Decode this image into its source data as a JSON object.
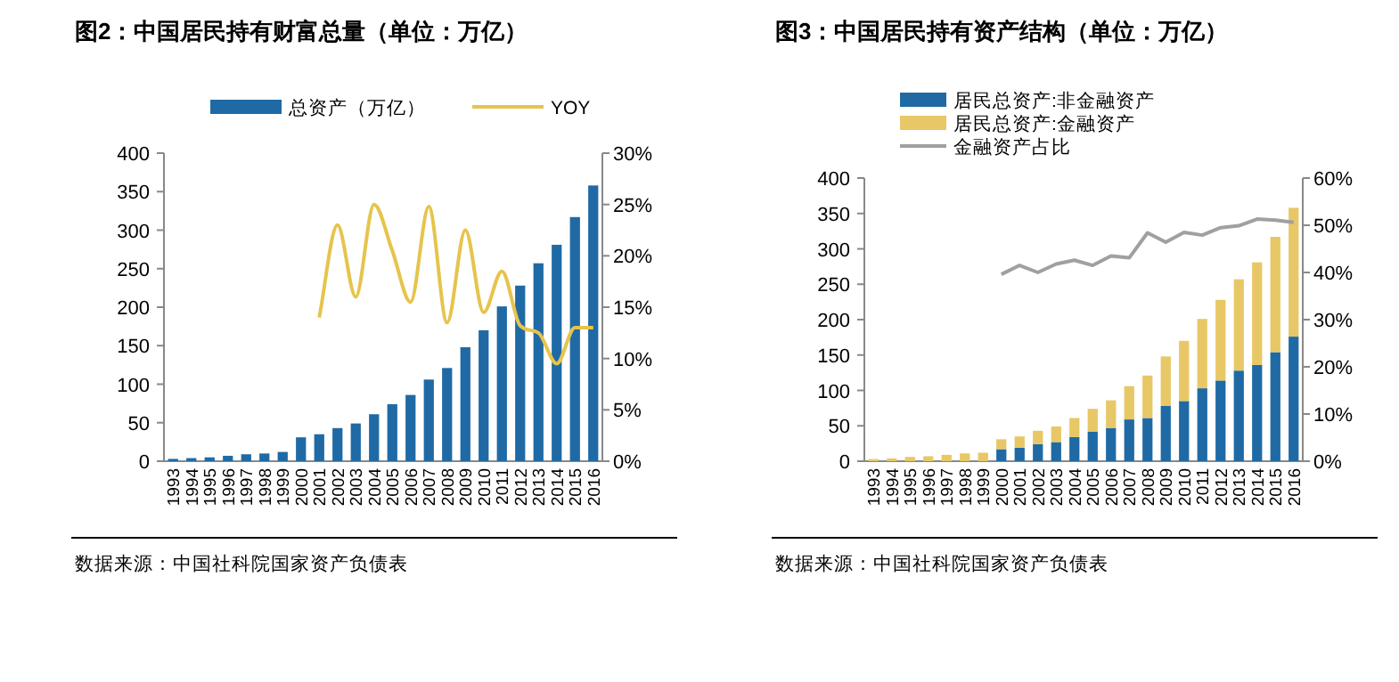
{
  "chart_data": [
    {
      "type": "bar",
      "title": "图2：中国居民持有财富总量（单位：万亿）",
      "categories": [
        "1993",
        "1994",
        "1995",
        "1996",
        "1997",
        "1998",
        "1999",
        "2000",
        "2001",
        "2002",
        "2003",
        "2004",
        "2005",
        "2006",
        "2007",
        "2008",
        "2009",
        "2010",
        "2011",
        "2012",
        "2013",
        "2014",
        "2015",
        "2016"
      ],
      "series": [
        {
          "name": "总资产（万亿）",
          "color": "#1f6aa5",
          "values": [
            3,
            4,
            5,
            7,
            9,
            10,
            12,
            31,
            35,
            43,
            49,
            61,
            74,
            86,
            106,
            121,
            148,
            170,
            201,
            228,
            257,
            281,
            317,
            358
          ]
        },
        {
          "name": "YOY",
          "type": "line",
          "axis": "y2",
          "color": "#e6c44c",
          "values": [
            null,
            null,
            null,
            null,
            null,
            null,
            null,
            null,
            14,
            23,
            16,
            25,
            20.5,
            15.5,
            24.8,
            13.5,
            22.5,
            14.5,
            18.5,
            13.2,
            12.5,
            9.5,
            13,
            13
          ]
        }
      ],
      "ylim": [
        0,
        400
      ],
      "yticks": [
        0,
        50,
        100,
        150,
        200,
        250,
        300,
        350,
        400
      ],
      "y2lim": [
        0,
        30
      ],
      "y2ticks": [
        {
          "value": 0,
          "label": "0%"
        },
        {
          "value": 5,
          "label": "5%"
        },
        {
          "value": 10,
          "label": "10%"
        },
        {
          "value": 15,
          "label": "15%"
        },
        {
          "value": 20,
          "label": "20%"
        },
        {
          "value": 25,
          "label": "25%"
        },
        {
          "value": 30,
          "label": "30%"
        }
      ],
      "legend": "top",
      "annotations": [
        "数据来源：中国社科院国家资产负债表"
      ]
    },
    {
      "type": "bar",
      "title": "图3：中国居民持有资产结构（单位：万亿）",
      "stacked": true,
      "categories": [
        "1993",
        "1994",
        "1995",
        "1996",
        "1997",
        "1998",
        "1999",
        "2000",
        "2001",
        "2002",
        "2003",
        "2004",
        "2005",
        "2006",
        "2007",
        "2008",
        "2009",
        "2010",
        "2011",
        "2012",
        "2013",
        "2014",
        "2015",
        "2016"
      ],
      "series": [
        {
          "name": "居民总资产:非金融资产",
          "color": "#1f6aa5",
          "values": [
            null,
            null,
            null,
            null,
            null,
            null,
            null,
            17,
            19,
            24,
            27,
            34,
            42,
            47,
            59,
            61,
            78,
            85,
            103,
            114,
            128,
            136,
            154,
            176
          ]
        },
        {
          "name": "居民总资产:金融资产",
          "color": "#e8c766",
          "values": [
            3,
            4,
            6,
            7,
            9,
            11,
            12,
            14,
            16,
            19,
            22,
            27,
            32,
            39,
            47,
            60,
            70,
            85,
            98,
            114,
            129,
            145,
            163,
            182
          ]
        },
        {
          "name": "金融资产占比",
          "type": "line",
          "axis": "y2",
          "color": "#a0a0a0",
          "values": [
            null,
            null,
            null,
            null,
            null,
            null,
            null,
            39.6,
            41.5,
            40,
            41.8,
            42.6,
            41.5,
            43.5,
            43.1,
            48.4,
            46.4,
            48.5,
            47.9,
            49.5,
            49.9,
            51.3,
            51.1,
            50.6
          ]
        }
      ],
      "ylim": [
        0,
        400
      ],
      "yticks": [
        0,
        50,
        100,
        150,
        200,
        250,
        300,
        350,
        400
      ],
      "y2lim": [
        0,
        60
      ],
      "y2ticks": [
        {
          "value": 0,
          "label": "0%"
        },
        {
          "value": 10,
          "label": "10%"
        },
        {
          "value": 20,
          "label": "20%"
        },
        {
          "value": 30,
          "label": "30%"
        },
        {
          "value": 40,
          "label": "40%"
        },
        {
          "value": 50,
          "label": "50%"
        },
        {
          "value": 60,
          "label": "60%"
        }
      ],
      "legend": "top",
      "annotations": [
        "数据来源：中国社科院国家资产负债表"
      ]
    }
  ]
}
